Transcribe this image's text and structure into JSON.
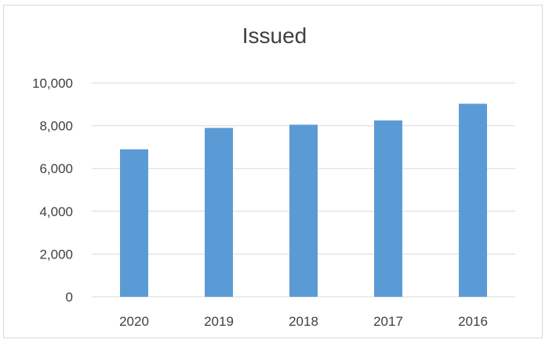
{
  "chart_data": {
    "type": "bar",
    "title": "Issued",
    "xlabel": "",
    "ylabel": "",
    "categories": [
      "2020",
      "2019",
      "2018",
      "2017",
      "2016"
    ],
    "values": [
      6900,
      7900,
      8050,
      8250,
      9030
    ],
    "ylim": [
      0,
      10000
    ],
    "yticks": [
      0,
      2000,
      4000,
      6000,
      8000,
      10000
    ],
    "ytick_labels": [
      "0",
      "2,000",
      "4,000",
      "6,000",
      "8,000",
      "10,000"
    ],
    "grid": true,
    "legend": "none",
    "bar_color": "#5b9bd5",
    "grid_color": "#d9d9d9"
  }
}
